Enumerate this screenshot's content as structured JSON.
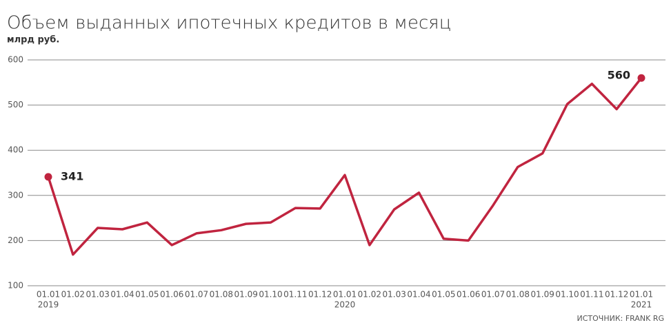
{
  "chart_data": {
    "type": "line",
    "title": "Объем выданных ипотечных кредитов в месяц",
    "subtitle": "млрд руб.",
    "source": "ИСТОЧНИК: FRANK RG",
    "categories": [
      "01.01",
      "01.02",
      "01.03",
      "01.04",
      "01.05",
      "01.06",
      "01.07",
      "01.08",
      "01.09",
      "01.10",
      "01.11",
      "01.12",
      "01.01",
      "01.02",
      "01.03",
      "01.04",
      "01.05",
      "01.06",
      "01.07",
      "01.08",
      "01.09",
      "01.10",
      "01.11",
      "01.12",
      "01.01"
    ],
    "category_years": [
      "2019",
      null,
      null,
      null,
      null,
      null,
      null,
      null,
      null,
      null,
      null,
      null,
      "2020",
      null,
      null,
      null,
      null,
      null,
      null,
      null,
      null,
      null,
      null,
      null,
      "2021"
    ],
    "series": [
      {
        "name": "Объем",
        "color": "#c0243f",
        "values": [
          341,
          169,
          228,
          225,
          240,
          190,
          216,
          223,
          237,
          240,
          272,
          271,
          345,
          190,
          269,
          306,
          204,
          200,
          278,
          363,
          393,
          502,
          547,
          491,
          560
        ]
      }
    ],
    "ylim": [
      100,
      600
    ],
    "yticks": [
      100,
      200,
      300,
      400,
      500,
      600
    ],
    "grid": true
  }
}
